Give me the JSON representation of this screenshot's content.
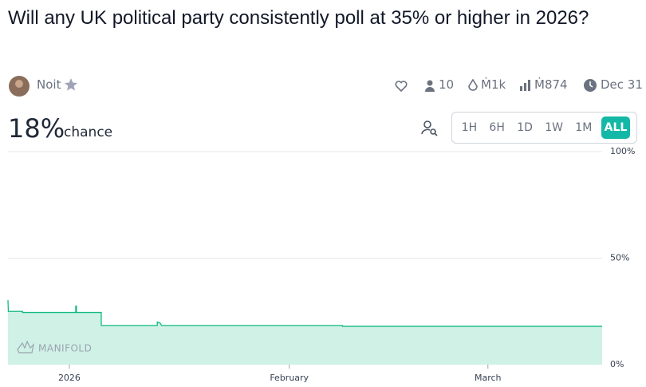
{
  "header": {
    "title": "Will any UK political party consistently poll at 35% or higher in 2026?",
    "author": "Noit",
    "stats": {
      "traders": "10",
      "volume": "Ṁ1k",
      "liquidity": "Ṁ874",
      "close": "Dec 31"
    }
  },
  "probability": {
    "value": "18%",
    "label": "chance"
  },
  "time_buttons": [
    "1H",
    "6H",
    "1D",
    "1W",
    "1M",
    "ALL"
  ],
  "selected_button": "ALL",
  "watermark": "MANIFOLD",
  "chart_data": {
    "type": "line",
    "x": [
      -8.65,
      -8.6,
      -6.6,
      -6.6,
      0.9,
      0.9,
      1.0,
      1.0,
      4.5,
      4.5,
      12.4,
      12.4,
      12.8,
      13.0,
      38.5,
      38.5,
      75.1
    ],
    "series": [
      {
        "color": "#11b981",
        "values": [
          30.3,
          25,
          25,
          24.5,
          24.5,
          27.5,
          27.5,
          24.5,
          24.5,
          18.4,
          18.4,
          20,
          19.5,
          18.4,
          18.4,
          18,
          18
        ]
      }
    ],
    "xlim": [
      -8.65,
      75.1
    ],
    "xticks": [
      {
        "value": 0,
        "label": "2026"
      },
      {
        "value": 31,
        "label": "February"
      },
      {
        "value": 59,
        "label": "March"
      }
    ],
    "ylim": [
      0,
      100
    ],
    "yticks": [
      {
        "value": 0,
        "label": "0%"
      },
      {
        "value": 50,
        "label": "50%"
      },
      {
        "value": 100,
        "label": "100%"
      }
    ],
    "grid": true
  }
}
